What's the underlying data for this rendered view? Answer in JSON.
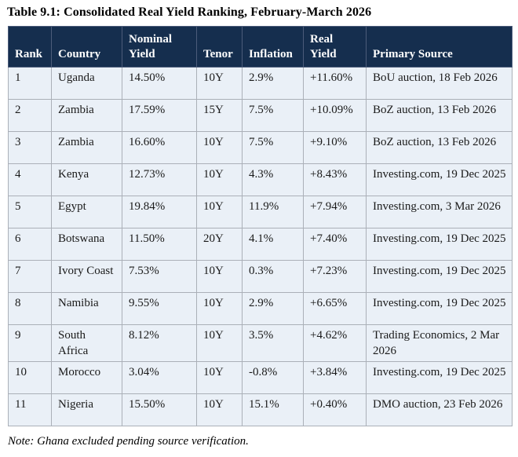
{
  "title": "Table 9.1: Consolidated Real Yield Ranking, February-March 2026",
  "note": "Note: Ghana excluded pending source verification.",
  "colors": {
    "header_bg": "#152E4E",
    "header_text": "#FFFFFF",
    "header_divider": "#4C5C7A",
    "row_bg": "#EAF0F7",
    "border": "#ABB0B8",
    "outer_border": "#8C9198",
    "text": "#1A1A1A"
  },
  "table": {
    "columns": [
      "Rank",
      "Country",
      "Nominal Yield",
      "Tenor",
      "Inflation",
      "Real Yield",
      "Primary Source"
    ],
    "column_keys": [
      "rank",
      "country",
      "nominal-yield",
      "tenor",
      "inflation",
      "real-yield",
      "primary-source"
    ],
    "rows": [
      [
        "1",
        "Uganda",
        "14.50%",
        "10Y",
        "2.9%",
        "+11.60%",
        "BoU auction, 18 Feb 2026"
      ],
      [
        "2",
        "Zambia",
        "17.59%",
        "15Y",
        "7.5%",
        "+10.09%",
        "BoZ auction, 13 Feb 2026"
      ],
      [
        "3",
        "Zambia",
        "16.60%",
        "10Y",
        "7.5%",
        "+9.10%",
        "BoZ auction, 13 Feb 2026"
      ],
      [
        "4",
        "Kenya",
        "12.73%",
        "10Y",
        "4.3%",
        "+8.43%",
        "Investing.com, 19 Dec 2025"
      ],
      [
        "5",
        "Egypt",
        "19.84%",
        "10Y",
        "11.9%",
        "+7.94%",
        "Investing.com, 3 Mar 2026"
      ],
      [
        "6",
        "Botswana",
        "11.50%",
        "20Y",
        "4.1%",
        "+7.40%",
        "Investing.com, 19 Dec 2025"
      ],
      [
        "7",
        "Ivory Coast",
        "7.53%",
        "10Y",
        "0.3%",
        "+7.23%",
        "Investing.com, 19 Dec 2025"
      ],
      [
        "8",
        "Namibia",
        "9.55%",
        "10Y",
        "2.9%",
        "+6.65%",
        "Investing.com, 19 Dec 2025"
      ],
      [
        "9",
        "South Africa",
        "8.12%",
        "10Y",
        "3.5%",
        "+4.62%",
        "Trading Economics, 2 Mar 2026"
      ],
      [
        "10",
        "Morocco",
        "3.04%",
        "10Y",
        "-0.8%",
        "+3.84%",
        "Investing.com, 19 Dec 2025"
      ],
      [
        "11",
        "Nigeria",
        "15.50%",
        "10Y",
        "15.1%",
        "+0.40%",
        "DMO auction, 23 Feb 2026"
      ]
    ]
  }
}
